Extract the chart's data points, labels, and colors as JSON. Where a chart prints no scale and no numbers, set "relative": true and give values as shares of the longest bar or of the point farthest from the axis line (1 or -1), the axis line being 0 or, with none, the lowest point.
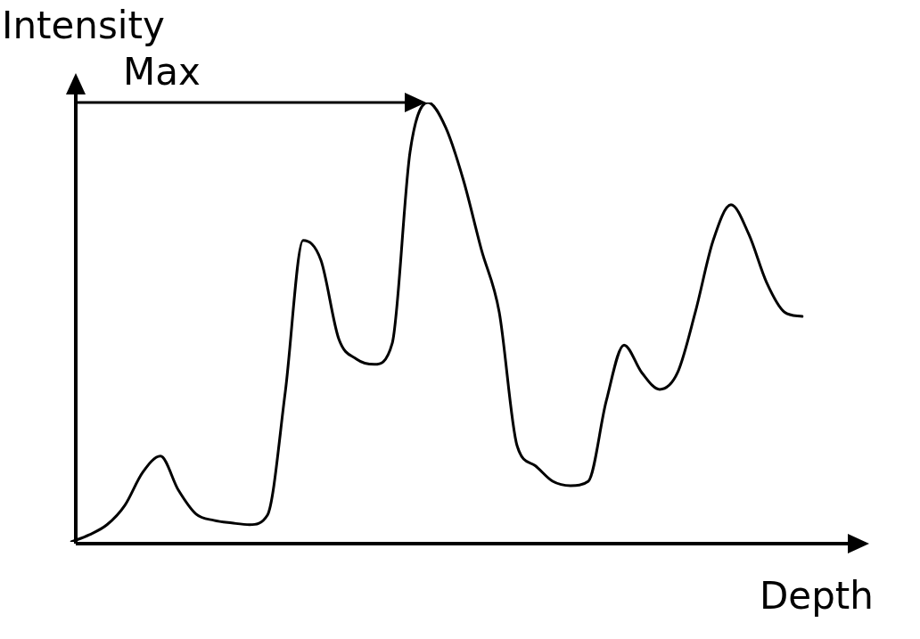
{
  "chart_data": {
    "type": "line",
    "relative": true,
    "xlabel": "Depth",
    "ylabel": "Intensity",
    "color": "#000000",
    "marker": "none",
    "line_style": "solid",
    "legend": false,
    "categories": [
      null,
      null,
      null,
      null,
      null,
      null,
      null,
      null,
      null,
      null,
      null,
      null,
      null,
      null,
      null,
      null,
      null,
      null,
      null,
      null,
      null,
      null,
      null,
      null,
      null,
      null,
      null,
      null,
      null,
      null,
      null,
      null,
      null,
      null,
      null,
      null,
      null,
      null,
      null,
      null,
      null,
      null
    ],
    "values": [
      0.0,
      0.016,
      0.039,
      0.083,
      0.158,
      0.195,
      0.118,
      0.063,
      0.049,
      0.043,
      0.039,
      0.061,
      0.341,
      0.686,
      0.641,
      0.462,
      0.416,
      0.404,
      0.452,
      0.888,
      1,
      0.943,
      0.822,
      0.665,
      0.523,
      0.219,
      0.174,
      0.138,
      0.128,
      0.138,
      0.32,
      0.448,
      0.385,
      0.347,
      0.385,
      0.523,
      0.686,
      0.767,
      0.7,
      0.59,
      0.523,
      0.513
    ],
    "annotations": [
      "Max"
    ]
  }
}
